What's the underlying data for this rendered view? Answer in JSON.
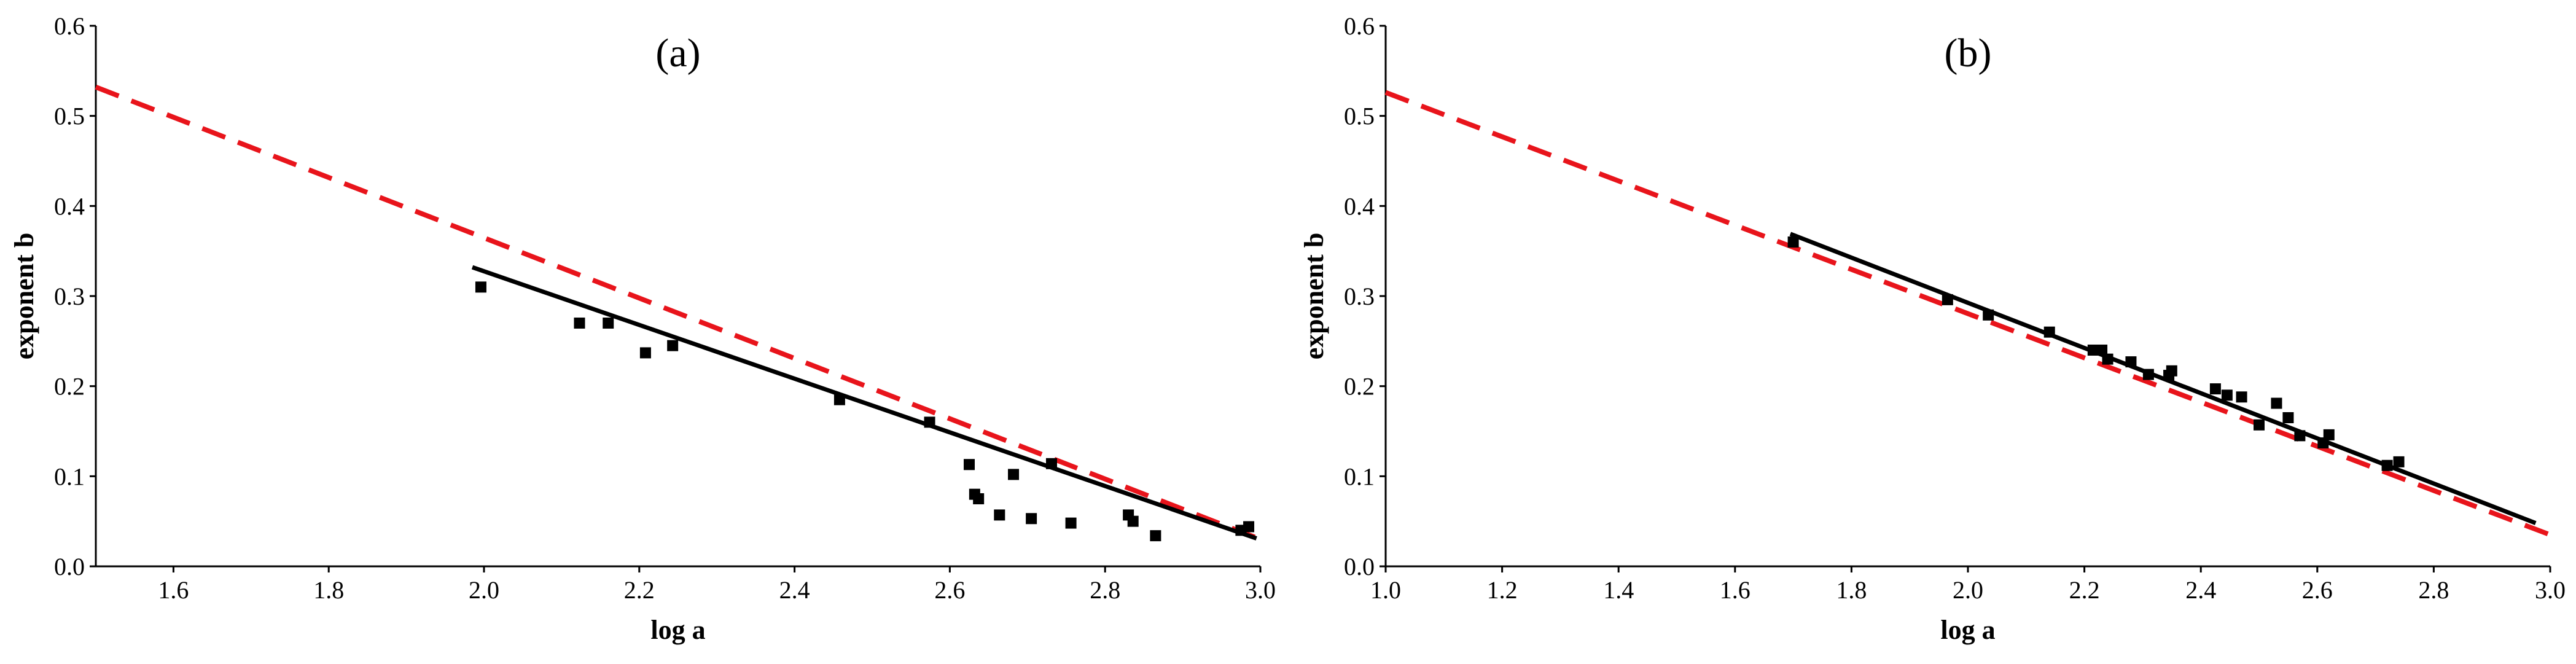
{
  "chart_data": [
    {
      "type": "scatter",
      "panel_label": "(a)",
      "xlabel": "log a",
      "ylabel": "exponent b",
      "xlim": [
        1.5,
        3.0
      ],
      "ylim": [
        0.0,
        0.6
      ],
      "xticks": [
        "1.6",
        "1.8",
        "2.0",
        "2.2",
        "2.4",
        "2.6",
        "2.8",
        "3.0"
      ],
      "yticks": [
        "0.0",
        "0.1",
        "0.2",
        "0.3",
        "0.4",
        "0.5",
        "0.6"
      ],
      "grid": false,
      "colors": {
        "points": "#000000",
        "fit_line": "#000000",
        "dashed_line": "#e8141b"
      },
      "points": {
        "x": [
          1.996,
          2.123,
          2.16,
          2.208,
          2.243,
          2.458,
          2.574,
          2.625,
          2.632,
          2.637,
          2.664,
          2.682,
          2.705,
          2.731,
          2.756,
          2.83,
          2.836,
          2.865,
          2.975,
          2.985
        ],
        "y": [
          0.31,
          0.27,
          0.27,
          0.237,
          0.245,
          0.185,
          0.16,
          0.113,
          0.08,
          0.075,
          0.057,
          0.102,
          0.053,
          0.114,
          0.048,
          0.057,
          0.05,
          0.034,
          0.04,
          0.044
        ]
      },
      "fit_line": {
        "x": [
          1.985,
          2.995
        ],
        "y": [
          0.332,
          0.031
        ]
      },
      "dashed_line": {
        "x": [
          1.5,
          3.0
        ],
        "y": [
          0.532,
          0.03
        ]
      }
    },
    {
      "type": "scatter",
      "panel_label": "(b)",
      "xlabel": "log a",
      "ylabel": "exponent b",
      "xlim": [
        1.0,
        3.0
      ],
      "ylim": [
        0.0,
        0.6
      ],
      "xticks": [
        "1.0",
        "1.2",
        "1.4",
        "1.6",
        "1.8",
        "2.0",
        "2.2",
        "2.4",
        "2.6",
        "2.8",
        "3.0"
      ],
      "yticks": [
        "0.0",
        "0.1",
        "0.2",
        "0.3",
        "0.4",
        "0.5",
        "0.6"
      ],
      "grid": false,
      "colors": {
        "points": "#000000",
        "fit_line": "#000000",
        "dashed_line": "#e8141b"
      },
      "points": {
        "x": [
          1.7,
          1.965,
          2.035,
          2.14,
          2.215,
          2.23,
          2.24,
          2.28,
          2.31,
          2.345,
          2.35,
          2.425,
          2.445,
          2.47,
          2.5,
          2.53,
          2.55,
          2.57,
          2.61,
          2.62,
          2.72,
          2.74
        ],
        "y": [
          0.36,
          0.296,
          0.279,
          0.26,
          0.24,
          0.24,
          0.23,
          0.227,
          0.213,
          0.212,
          0.217,
          0.197,
          0.19,
          0.188,
          0.157,
          0.181,
          0.165,
          0.145,
          0.137,
          0.146,
          0.112,
          0.116
        ]
      },
      "fit_line": {
        "x": [
          1.695,
          2.975
        ],
        "y": [
          0.369,
          0.048
        ]
      },
      "dashed_line": {
        "x": [
          1.0,
          3.0
        ],
        "y": [
          0.526,
          0.035
        ]
      }
    }
  ]
}
